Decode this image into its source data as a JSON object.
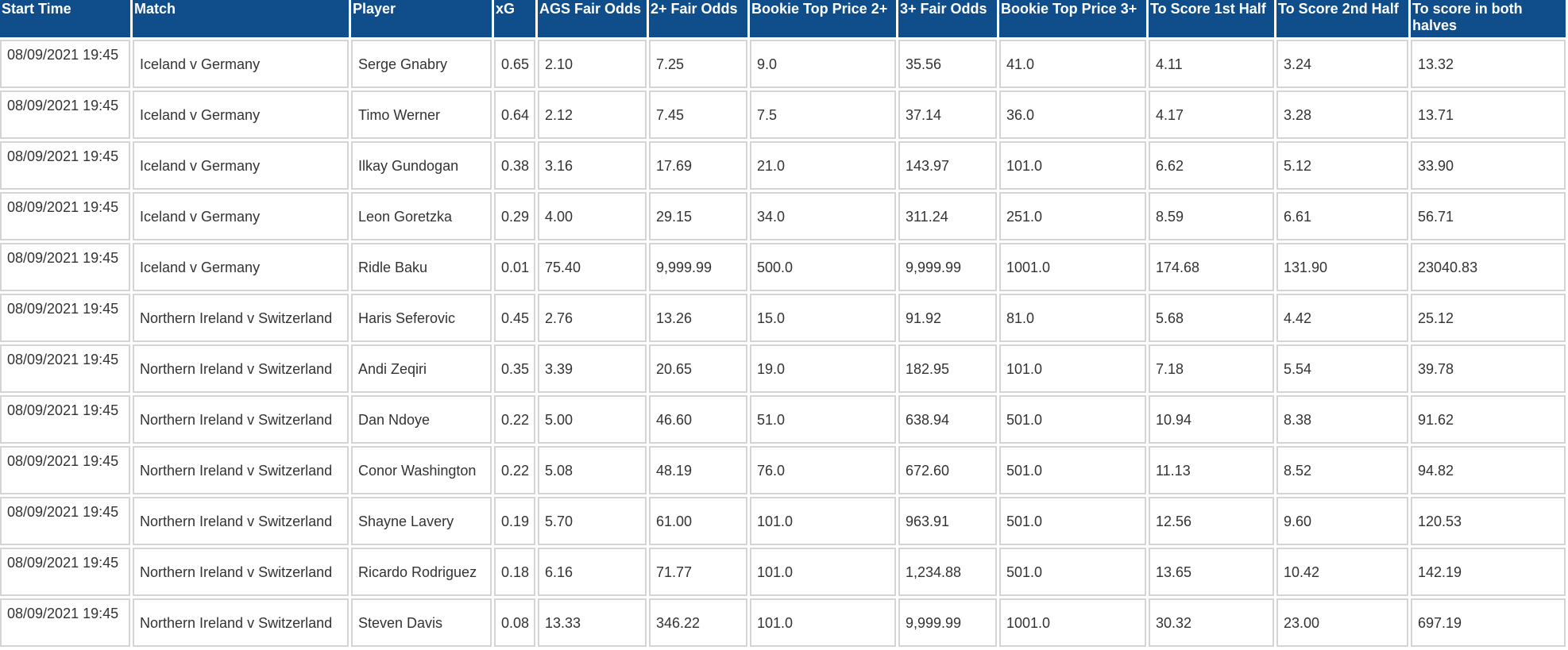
{
  "table": {
    "headers": [
      "Start Time",
      "Match",
      "Player",
      "xG",
      "AGS Fair Odds",
      "2+ Fair Odds",
      "Bookie Top Price 2+",
      "3+ Fair Odds",
      "Bookie Top Price 3+",
      "To Score 1st Half",
      "To Score 2nd Half",
      "To score in both halves"
    ],
    "rows": [
      [
        "08/09/2021 19:45",
        "Iceland v Germany",
        "Serge Gnabry",
        "0.65",
        "2.10",
        "7.25",
        "9.0",
        "35.56",
        "41.0",
        "4.11",
        "3.24",
        "13.32"
      ],
      [
        "08/09/2021 19:45",
        "Iceland v Germany",
        "Timo Werner",
        "0.64",
        "2.12",
        "7.45",
        "7.5",
        "37.14",
        "36.0",
        "4.17",
        "3.28",
        "13.71"
      ],
      [
        "08/09/2021 19:45",
        "Iceland v Germany",
        "Ilkay Gundogan",
        "0.38",
        "3.16",
        "17.69",
        "21.0",
        "143.97",
        "101.0",
        "6.62",
        "5.12",
        "33.90"
      ],
      [
        "08/09/2021 19:45",
        "Iceland v Germany",
        "Leon Goretzka",
        "0.29",
        "4.00",
        "29.15",
        "34.0",
        "311.24",
        "251.0",
        "8.59",
        "6.61",
        "56.71"
      ],
      [
        "08/09/2021 19:45",
        "Iceland v Germany",
        "Ridle Baku",
        "0.01",
        "75.40",
        "9,999.99",
        "500.0",
        "9,999.99",
        "1001.0",
        "174.68",
        "131.90",
        "23040.83"
      ],
      [
        "08/09/2021 19:45",
        "Northern Ireland v Switzerland",
        "Haris Seferovic",
        "0.45",
        "2.76",
        "13.26",
        "15.0",
        "91.92",
        "81.0",
        "5.68",
        "4.42",
        "25.12"
      ],
      [
        "08/09/2021 19:45",
        "Northern Ireland v Switzerland",
        "Andi Zeqiri",
        "0.35",
        "3.39",
        "20.65",
        "19.0",
        "182.95",
        "101.0",
        "7.18",
        "5.54",
        "39.78"
      ],
      [
        "08/09/2021 19:45",
        "Northern Ireland v Switzerland",
        "Dan Ndoye",
        "0.22",
        "5.00",
        "46.60",
        "51.0",
        "638.94",
        "501.0",
        "10.94",
        "8.38",
        "91.62"
      ],
      [
        "08/09/2021 19:45",
        "Northern Ireland v Switzerland",
        "Conor Washington",
        "0.22",
        "5.08",
        "48.19",
        "76.0",
        "672.60",
        "501.0",
        "11.13",
        "8.52",
        "94.82"
      ],
      [
        "08/09/2021 19:45",
        "Northern Ireland v Switzerland",
        "Shayne Lavery",
        "0.19",
        "5.70",
        "61.00",
        "101.0",
        "963.91",
        "501.0",
        "12.56",
        "9.60",
        "120.53"
      ],
      [
        "08/09/2021 19:45",
        "Northern Ireland v Switzerland",
        "Ricardo Rodriguez",
        "0.18",
        "6.16",
        "71.77",
        "101.0",
        "1,234.88",
        "501.0",
        "13.65",
        "10.42",
        "142.19"
      ],
      [
        "08/09/2021 19:45",
        "Northern Ireland v Switzerland",
        "Steven Davis",
        "0.08",
        "13.33",
        "346.22",
        "101.0",
        "9,999.99",
        "1001.0",
        "30.32",
        "23.00",
        "697.19"
      ]
    ]
  },
  "colors": {
    "header_background": "#104e8b",
    "header_text": "#ffffff",
    "cell_border": "#d4d4d4",
    "cell_text": "#333333"
  }
}
